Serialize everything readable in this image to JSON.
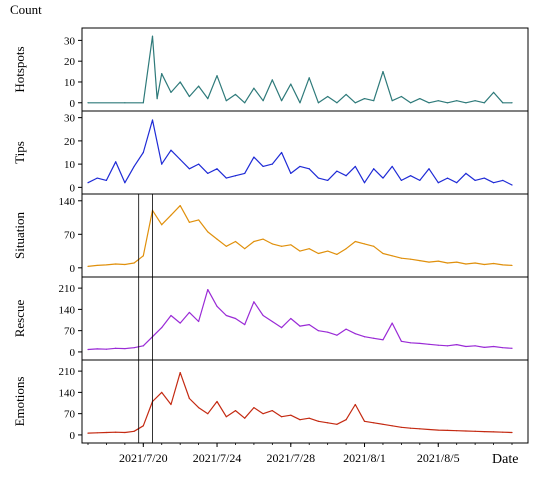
{
  "figure": {
    "y_unit_label": "Count",
    "x_unit_label": "Date"
  },
  "chart_data": [
    {
      "type": "line",
      "panel": 1,
      "ylabel": "Hotspots",
      "color": "#2E7A7A",
      "ylim": [
        -3,
        35
      ],
      "yticks": [
        0,
        10,
        20,
        30
      ],
      "x_range": [
        "2021/7/17",
        "2021/8/9"
      ],
      "series": [
        {
          "x": [
            "2021/7/17",
            "2021/7/19",
            "2021/7/20",
            "2021/7/20 12:00",
            "2021/7/20 18:00",
            "2021/7/21",
            "2021/7/21 12:00",
            "2021/7/22",
            "2021/7/22 12:00",
            "2021/7/23",
            "2021/7/23 12:00",
            "2021/7/24",
            "2021/7/24 12:00",
            "2021/7/25",
            "2021/7/25 12:00",
            "2021/7/26",
            "2021/7/26 12:00",
            "2021/7/27",
            "2021/7/27 12:00",
            "2021/7/28",
            "2021/7/28 12:00",
            "2021/7/29",
            "2021/7/29 12:00",
            "2021/7/30",
            "2021/7/30 12:00",
            "2021/7/31",
            "2021/7/31 12:00",
            "2021/8/1",
            "2021/8/1 12:00",
            "2021/8/2",
            "2021/8/2 12:00",
            "2021/8/3",
            "2021/8/3 12:00",
            "2021/8/4",
            "2021/8/4 12:00",
            "2021/8/5",
            "2021/8/5 12:00",
            "2021/8/6",
            "2021/8/6 12:00",
            "2021/8/7",
            "2021/8/7 12:00",
            "2021/8/8",
            "2021/8/8 12:00",
            "2021/8/9"
          ],
          "values": [
            0,
            0,
            0,
            32,
            2,
            14,
            5,
            10,
            3,
            8,
            2,
            13,
            1,
            4,
            0,
            7,
            1,
            11,
            1,
            9,
            0,
            12,
            0,
            3,
            0,
            4,
            0,
            2,
            1,
            15,
            1,
            3,
            0,
            2,
            0,
            1,
            0,
            1,
            0,
            1,
            0,
            5,
            0,
            0
          ]
        }
      ]
    },
    {
      "type": "line",
      "panel": 2,
      "ylabel": "Tips",
      "color": "#1F2BD6",
      "ylim": [
        -2,
        32
      ],
      "yticks": [
        0,
        10,
        20,
        30
      ],
      "x_range": [
        "2021/7/17",
        "2021/8/9"
      ],
      "series": [
        {
          "x": [
            "2021/7/17",
            "2021/7/17 12:00",
            "2021/7/18",
            "2021/7/18 12:00",
            "2021/7/19",
            "2021/7/19 12:00",
            "2021/7/20",
            "2021/7/20 12:00",
            "2021/7/21",
            "2021/7/21 12:00",
            "2021/7/22",
            "2021/7/22 12:00",
            "2021/7/23",
            "2021/7/23 12:00",
            "2021/7/24",
            "2021/7/24 12:00",
            "2021/7/25",
            "2021/7/25 12:00",
            "2021/7/26",
            "2021/7/26 12:00",
            "2021/7/27",
            "2021/7/27 12:00",
            "2021/7/28",
            "2021/7/28 12:00",
            "2021/7/29",
            "2021/7/29 12:00",
            "2021/7/30",
            "2021/7/30 12:00",
            "2021/7/31",
            "2021/7/31 12:00",
            "2021/8/1",
            "2021/8/1 12:00",
            "2021/8/2",
            "2021/8/2 12:00",
            "2021/8/3",
            "2021/8/3 12:00",
            "2021/8/4",
            "2021/8/4 12:00",
            "2021/8/5",
            "2021/8/5 12:00",
            "2021/8/6",
            "2021/8/6 12:00",
            "2021/8/7",
            "2021/8/7 12:00",
            "2021/8/8",
            "2021/8/8 12:00",
            "2021/8/9"
          ],
          "values": [
            2,
            4,
            3,
            11,
            2,
            9,
            15,
            29,
            10,
            16,
            12,
            8,
            10,
            6,
            8,
            4,
            5,
            6,
            13,
            9,
            10,
            15,
            6,
            9,
            8,
            4,
            3,
            7,
            5,
            9,
            2,
            8,
            4,
            9,
            3,
            5,
            3,
            8,
            2,
            4,
            2,
            6,
            3,
            4,
            2,
            3,
            1
          ]
        }
      ]
    },
    {
      "type": "line",
      "panel": 3,
      "ylabel": "Situation",
      "color": "#E0900C",
      "ylim": [
        -15,
        150
      ],
      "yticks": [
        0,
        70,
        140
      ],
      "x_range": [
        "2021/7/17",
        "2021/8/9"
      ],
      "series": [
        {
          "x": [
            "2021/7/17",
            "2021/7/17 12:00",
            "2021/7/18",
            "2021/7/18 12:00",
            "2021/7/19",
            "2021/7/19 12:00",
            "2021/7/20",
            "2021/7/20 12:00",
            "2021/7/21",
            "2021/7/21 12:00",
            "2021/7/22",
            "2021/7/22 12:00",
            "2021/7/23",
            "2021/7/23 12:00",
            "2021/7/24",
            "2021/7/24 12:00",
            "2021/7/25",
            "2021/7/25 12:00",
            "2021/7/26",
            "2021/7/26 12:00",
            "2021/7/27",
            "2021/7/27 12:00",
            "2021/7/28",
            "2021/7/28 12:00",
            "2021/7/29",
            "2021/7/29 12:00",
            "2021/7/30",
            "2021/7/30 12:00",
            "2021/7/31",
            "2021/7/31 12:00",
            "2021/8/1",
            "2021/8/1 12:00",
            "2021/8/2",
            "2021/8/2 12:00",
            "2021/8/3",
            "2021/8/3 12:00",
            "2021/8/4",
            "2021/8/4 12:00",
            "2021/8/5",
            "2021/8/5 12:00",
            "2021/8/6",
            "2021/8/6 12:00",
            "2021/8/7",
            "2021/8/7 12:00",
            "2021/8/8",
            "2021/8/8 12:00",
            "2021/8/9"
          ],
          "values": [
            3,
            5,
            6,
            8,
            7,
            10,
            25,
            120,
            90,
            110,
            130,
            95,
            100,
            75,
            60,
            45,
            55,
            40,
            55,
            60,
            50,
            45,
            48,
            35,
            40,
            30,
            35,
            28,
            40,
            55,
            50,
            45,
            30,
            25,
            20,
            18,
            15,
            12,
            14,
            10,
            12,
            8,
            10,
            7,
            9,
            6,
            5
          ]
        }
      ]
    },
    {
      "type": "line",
      "panel": 4,
      "ylabel": "Rescue",
      "color": "#9A2BD6",
      "ylim": [
        -20,
        240
      ],
      "yticks": [
        0,
        70,
        140,
        210
      ],
      "x_range": [
        "2021/7/17",
        "2021/8/9"
      ],
      "series": [
        {
          "x": [
            "2021/7/17",
            "2021/7/17 12:00",
            "2021/7/18",
            "2021/7/18 12:00",
            "2021/7/19",
            "2021/7/19 12:00",
            "2021/7/20",
            "2021/7/20 12:00",
            "2021/7/21",
            "2021/7/21 12:00",
            "2021/7/22",
            "2021/7/22 12:00",
            "2021/7/23",
            "2021/7/23 12:00",
            "2021/7/24",
            "2021/7/24 12:00",
            "2021/7/25",
            "2021/7/25 12:00",
            "2021/7/26",
            "2021/7/26 12:00",
            "2021/7/27",
            "2021/7/27 12:00",
            "2021/7/28",
            "2021/7/28 12:00",
            "2021/7/29",
            "2021/7/29 12:00",
            "2021/7/30",
            "2021/7/30 12:00",
            "2021/7/31",
            "2021/7/31 12:00",
            "2021/8/1",
            "2021/8/1 12:00",
            "2021/8/2",
            "2021/8/2 12:00",
            "2021/8/3",
            "2021/8/3 12:00",
            "2021/8/4",
            "2021/8/4 12:00",
            "2021/8/5",
            "2021/8/5 12:00",
            "2021/8/6",
            "2021/8/6 12:00",
            "2021/8/7",
            "2021/8/7 12:00",
            "2021/8/8",
            "2021/8/8 12:00",
            "2021/8/9"
          ],
          "values": [
            8,
            10,
            9,
            12,
            11,
            14,
            20,
            50,
            80,
            120,
            95,
            130,
            100,
            205,
            150,
            120,
            110,
            90,
            165,
            120,
            100,
            80,
            110,
            85,
            90,
            70,
            65,
            55,
            75,
            60,
            50,
            45,
            40,
            95,
            35,
            30,
            28,
            25,
            22,
            20,
            24,
            18,
            20,
            15,
            18,
            14,
            12
          ]
        }
      ]
    },
    {
      "type": "line",
      "panel": 5,
      "ylabel": "Emotions",
      "color": "#C42A12",
      "ylim": [
        -20,
        240
      ],
      "yticks": [
        0,
        70,
        140,
        210
      ],
      "xticks": [
        "2021/7/20",
        "2021/7/24",
        "2021/7/28",
        "2021/8/1",
        "2021/8/5"
      ],
      "x_range": [
        "2021/7/17",
        "2021/8/9"
      ],
      "series": [
        {
          "x": [
            "2021/7/17",
            "2021/7/17 12:00",
            "2021/7/18",
            "2021/7/18 12:00",
            "2021/7/19",
            "2021/7/19 12:00",
            "2021/7/20",
            "2021/7/20 12:00",
            "2021/7/21",
            "2021/7/21 12:00",
            "2021/7/22",
            "2021/7/22 12:00",
            "2021/7/23",
            "2021/7/23 12:00",
            "2021/7/24",
            "2021/7/24 12:00",
            "2021/7/25",
            "2021/7/25 12:00",
            "2021/7/26",
            "2021/7/26 12:00",
            "2021/7/27",
            "2021/7/27 12:00",
            "2021/7/28",
            "2021/7/28 12:00",
            "2021/7/29",
            "2021/7/29 12:00",
            "2021/7/30",
            "2021/7/30 12:00",
            "2021/7/31",
            "2021/7/31 12:00",
            "2021/8/1",
            "2021/8/1 12:00",
            "2021/8/2",
            "2021/8/2 12:00",
            "2021/8/3",
            "2021/8/3 12:00",
            "2021/8/4",
            "2021/8/4 12:00",
            "2021/8/5",
            "2021/8/5 12:00",
            "2021/8/6",
            "2021/8/6 12:00",
            "2021/8/7",
            "2021/8/7 12:00",
            "2021/8/8",
            "2021/8/8 12:00",
            "2021/8/9"
          ],
          "values": [
            6,
            7,
            8,
            9,
            8,
            12,
            30,
            110,
            140,
            100,
            205,
            120,
            90,
            70,
            110,
            60,
            80,
            55,
            90,
            70,
            80,
            60,
            65,
            50,
            55,
            45,
            40,
            35,
            50,
            100,
            45,
            40,
            35,
            30,
            25,
            22,
            20,
            18,
            16,
            15,
            14,
            13,
            12,
            11,
            10,
            9,
            8
          ]
        }
      ]
    }
  ]
}
